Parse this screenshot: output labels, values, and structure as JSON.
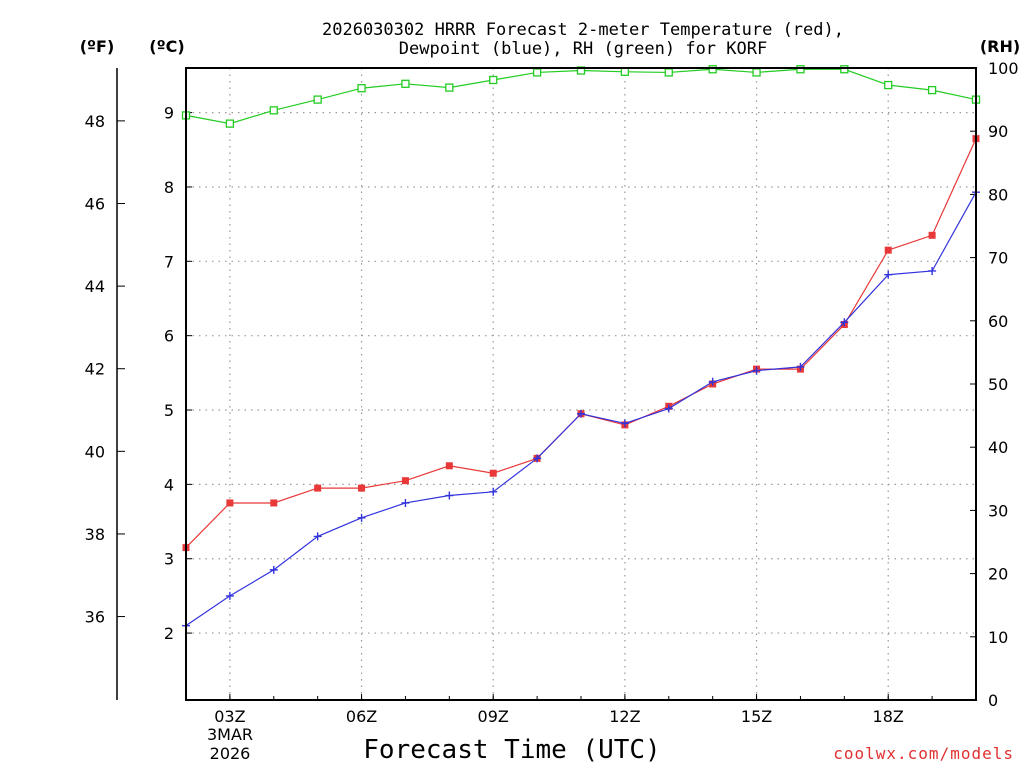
{
  "chart_data": {
    "type": "line",
    "title_line1": "2026030302 HRRR Forecast 2-meter Temperature (red),",
    "title_line2": "Dewpoint (blue), RH (green) for KORF",
    "xlabel": "Forecast Time (UTC)",
    "credit": "coolwx.com/models",
    "units": {
      "fahrenheit": "(ºF)",
      "celsius": "(ºC)",
      "rh": "(RH)"
    },
    "x_hours": [
      2,
      3,
      4,
      5,
      6,
      7,
      8,
      9,
      10,
      11,
      12,
      13,
      14,
      15,
      16,
      17,
      18,
      19,
      20
    ],
    "x_ticks": [
      {
        "hour": 3,
        "label": "03Z"
      },
      {
        "hour": 6,
        "label": "06Z"
      },
      {
        "hour": 9,
        "label": "09Z"
      },
      {
        "hour": 12,
        "label": "12Z"
      },
      {
        "hour": 15,
        "label": "15Z"
      },
      {
        "hour": 18,
        "label": "18Z"
      }
    ],
    "date_label": [
      "3MAR",
      "2026"
    ],
    "xlim": [
      2,
      20
    ],
    "celsius_ylim": [
      1.1,
      9.6
    ],
    "celsius_ticks": [
      "2",
      "3",
      "4",
      "5",
      "6",
      "7",
      "8",
      "9"
    ],
    "fahrenheit_ticks": [
      "36",
      "38",
      "40",
      "42",
      "44",
      "46",
      "48"
    ],
    "rh_ylim": [
      0,
      100
    ],
    "rh_ticks": [
      "0",
      "10",
      "20",
      "30",
      "40",
      "50",
      "60",
      "70",
      "80",
      "90",
      "100"
    ],
    "series": [
      {
        "name": "Temperature",
        "color": "#e83838",
        "marker": "filled-square",
        "values": [
          3.15,
          3.75,
          3.75,
          3.95,
          3.95,
          4.05,
          4.25,
          4.15,
          4.35,
          4.95,
          4.8,
          5.05,
          5.35,
          5.55,
          5.55,
          6.15,
          7.15,
          7.35,
          8.65
        ]
      },
      {
        "name": "Dewpoint",
        "color": "#3333dd",
        "marker": "plus",
        "values": [
          2.1,
          2.5,
          2.85,
          3.3,
          3.55,
          3.75,
          3.85,
          3.9,
          4.35,
          4.95,
          4.82,
          5.02,
          5.38,
          5.53,
          5.58,
          6.18,
          6.82,
          6.87,
          7.93
        ]
      },
      {
        "name": "RH",
        "color": "#22cc22",
        "marker": "open-square",
        "axis": "rh",
        "values": [
          92.5,
          91.2,
          93.3,
          95.0,
          96.8,
          97.5,
          96.9,
          98.1,
          99.3,
          99.6,
          99.4,
          99.3,
          99.8,
          99.3,
          99.8,
          99.8,
          97.3,
          96.5,
          95.0
        ]
      }
    ]
  }
}
